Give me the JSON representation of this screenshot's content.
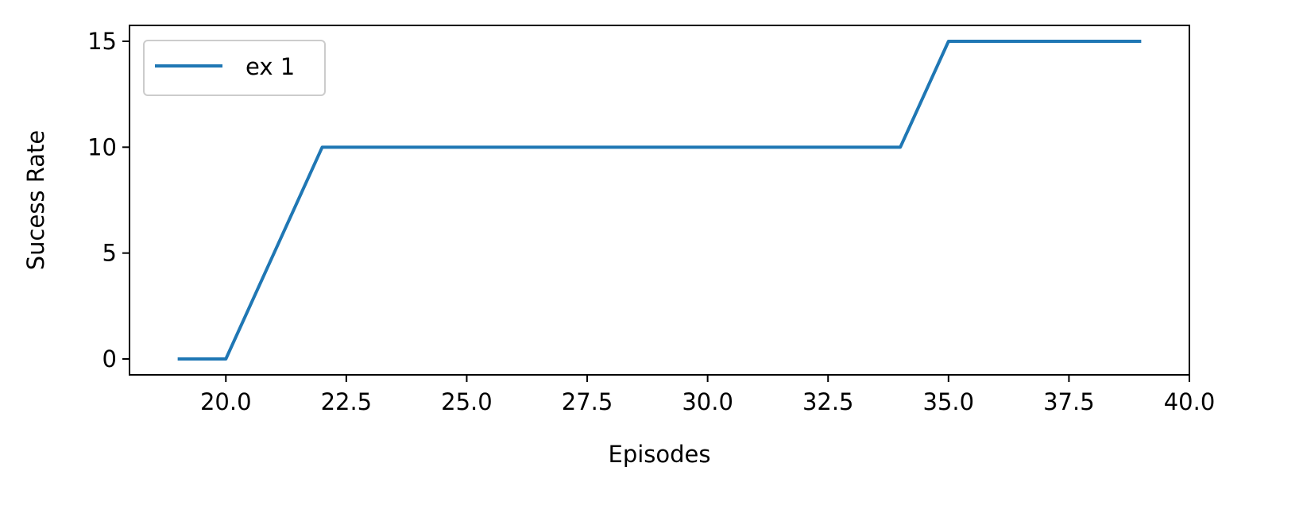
{
  "chart_data": {
    "type": "line",
    "title": "",
    "xlabel": "Episodes",
    "ylabel": "Sucess Rate",
    "xlim": [
      18.0,
      40.0
    ],
    "ylim": [
      -0.75,
      15.75
    ],
    "xticks": [
      20.0,
      22.5,
      25.0,
      27.5,
      30.0,
      32.5,
      35.0,
      37.5,
      40.0
    ],
    "xtick_labels": [
      "20.0",
      "22.5",
      "25.0",
      "27.5",
      "30.0",
      "32.5",
      "35.0",
      "37.5",
      "40.0"
    ],
    "yticks": [
      0,
      5,
      10,
      15
    ],
    "ytick_labels": [
      "0",
      "5",
      "10",
      "15"
    ],
    "grid": false,
    "legend_position": "top-left",
    "series": [
      {
        "name": "ex 1",
        "color": "#1f77b4",
        "x": [
          19,
          20,
          21,
          22,
          23,
          24,
          25,
          26,
          27,
          28,
          29,
          30,
          31,
          32,
          33,
          34,
          35,
          36,
          37,
          38,
          39
        ],
        "y": [
          0,
          0,
          5,
          10,
          10,
          10,
          10,
          10,
          10,
          10,
          10,
          10,
          10,
          10,
          10,
          10,
          15,
          15,
          15,
          15,
          15
        ]
      }
    ]
  }
}
